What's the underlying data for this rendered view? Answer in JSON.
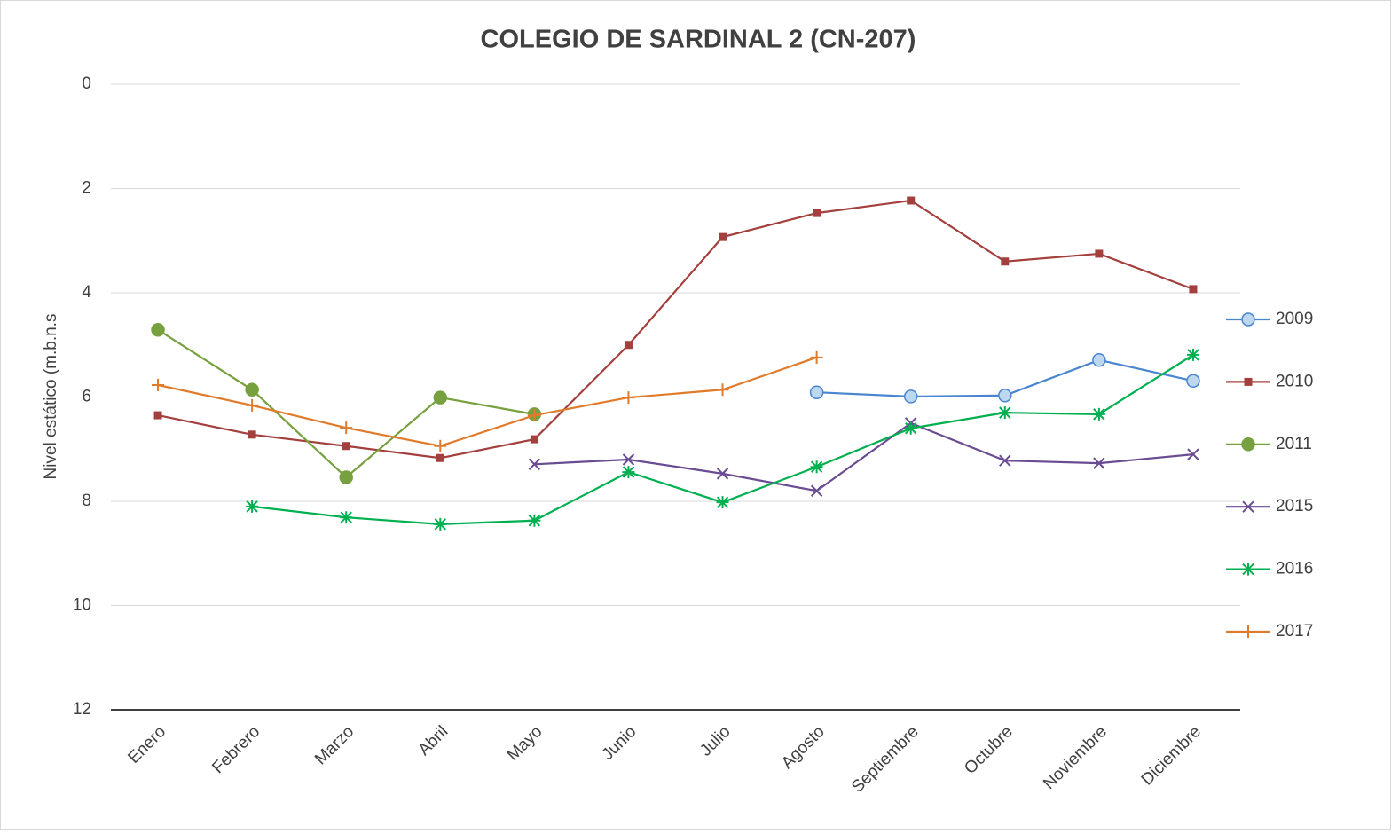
{
  "chart_data": {
    "type": "line",
    "title": "COLEGIO DE SARDINAL 2 (CN-207)",
    "y_label": "Nivel estático (m.b.n.s",
    "categories": [
      "Enero",
      "Febrero",
      "Marzo",
      "Abril",
      "Mayo",
      "Junio",
      "Julio",
      "Agosto",
      "Septiembre",
      "Octubre",
      "Noviembre",
      "Diciembre"
    ],
    "ylim": [
      0,
      12
    ],
    "yticks": [
      0,
      2,
      4,
      6,
      8,
      10,
      12
    ],
    "y_inverted": true,
    "grid": true,
    "legend": "right",
    "series": [
      {
        "name": "2009",
        "color": "#4a86d0",
        "marker": "circle",
        "marker_fill": "#bdd7ee",
        "values": [
          null,
          null,
          null,
          null,
          null,
          null,
          null,
          5.91,
          5.99,
          5.97,
          5.29,
          5.69
        ]
      },
      {
        "name": "2010",
        "color": "#a3403d",
        "marker": "square",
        "marker_fill": "#a3403d",
        "values": [
          6.35,
          6.72,
          6.94,
          7.17,
          6.81,
          5.0,
          2.93,
          2.47,
          2.23,
          3.4,
          3.25,
          3.93
        ]
      },
      {
        "name": "2011",
        "color": "#77a03f",
        "marker": "circle",
        "marker_fill": "#77a03f",
        "values": [
          4.71,
          5.86,
          7.54,
          6.01,
          6.33,
          null,
          null,
          null,
          null,
          null,
          null,
          null
        ]
      },
      {
        "name": "2015",
        "color": "#6a4c93",
        "marker": "x",
        "marker_fill": "none",
        "values": [
          null,
          null,
          null,
          null,
          7.29,
          7.2,
          7.47,
          7.8,
          6.5,
          7.22,
          7.27,
          7.1
        ]
      },
      {
        "name": "2016",
        "color": "#00b050",
        "marker": "star",
        "marker_fill": "none",
        "values": [
          null,
          8.1,
          8.31,
          8.44,
          8.37,
          7.44,
          8.02,
          7.34,
          6.6,
          6.3,
          6.33,
          5.19
        ]
      },
      {
        "name": "2017",
        "color": "#e07b2b",
        "marker": "plus",
        "marker_fill": "none",
        "values": [
          5.77,
          6.16,
          6.59,
          6.94,
          6.35,
          6.01,
          5.86,
          5.24,
          null,
          null,
          null,
          null
        ]
      }
    ]
  }
}
